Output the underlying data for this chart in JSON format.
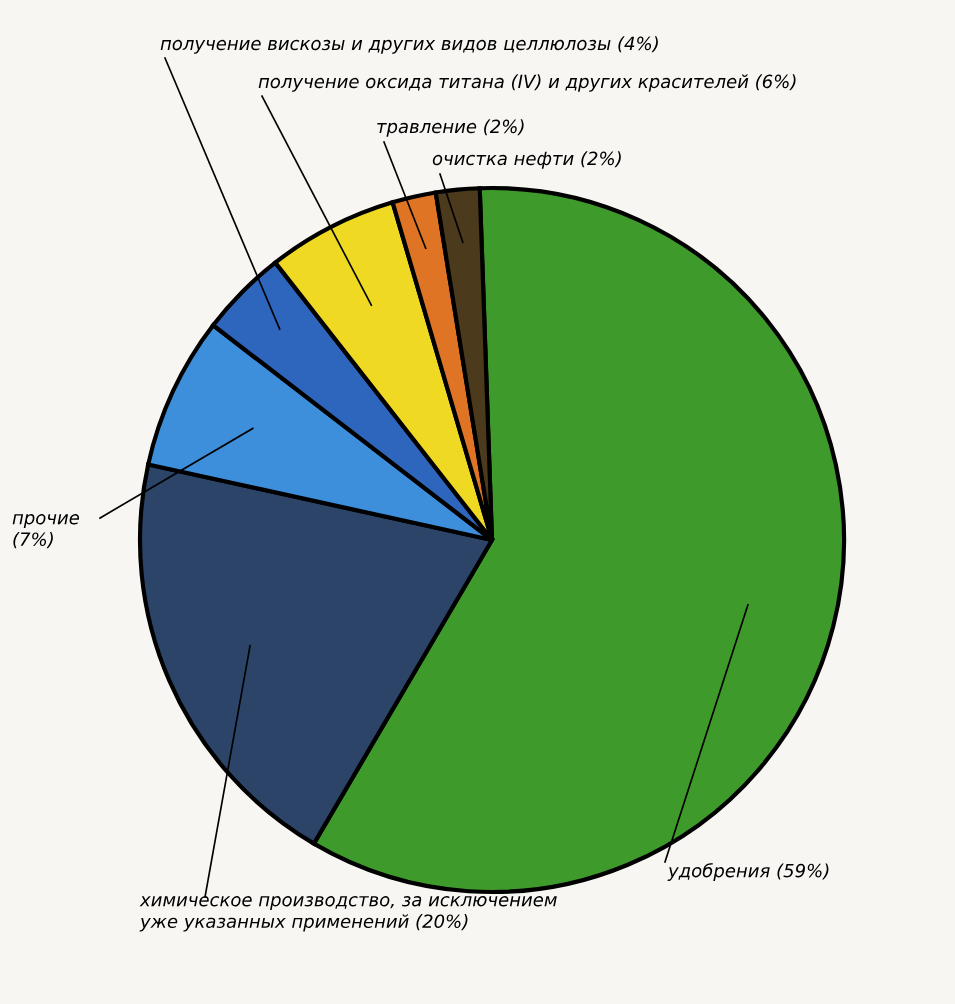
{
  "chart_data": {
    "type": "pie",
    "categories": [
      "удобрения (59%)",
      "химическое производство, за исключением\nуже указанных применений (20%)",
      "прочие\n(7%)",
      "получение вискозы и других видов целлюлозы (4%)",
      "получение оксида титана (IV) и других красителей (6%)",
      "травление (2%)",
      "очистка нефти (2%)"
    ],
    "values": [
      59,
      20,
      7,
      4,
      6,
      2,
      2
    ],
    "colors": [
      "#3f9a2c",
      "#2c4468",
      "#3d8fdc",
      "#2f66bd",
      "#f0d923",
      "#de7424",
      "#4b3b1c"
    ]
  }
}
